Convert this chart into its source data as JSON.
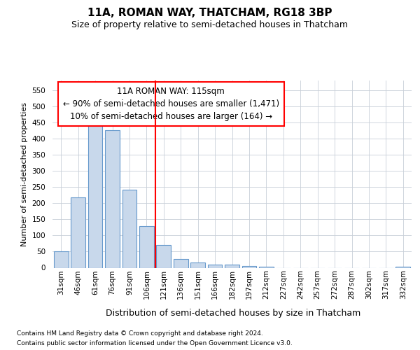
{
  "title_line1": "11A, ROMAN WAY, THATCHAM, RG18 3BP",
  "title_line2": "Size of property relative to semi-detached houses in Thatcham",
  "xlabel": "Distribution of semi-detached houses by size in Thatcham",
  "ylabel": "Number of semi-detached properties",
  "footer_line1": "Contains HM Land Registry data © Crown copyright and database right 2024.",
  "footer_line2": "Contains public sector information licensed under the Open Government Licence v3.0.",
  "annotation_line1": "11A ROMAN WAY: 115sqm",
  "annotation_line2": "← 90% of semi-detached houses are smaller (1,471)",
  "annotation_line3": "10% of semi-detached houses are larger (164) →",
  "categories": [
    "31sqm",
    "46sqm",
    "61sqm",
    "76sqm",
    "91sqm",
    "106sqm",
    "121sqm",
    "136sqm",
    "151sqm",
    "166sqm",
    "182sqm",
    "197sqm",
    "212sqm",
    "227sqm",
    "242sqm",
    "257sqm",
    "272sqm",
    "287sqm",
    "302sqm",
    "317sqm",
    "332sqm"
  ],
  "values": [
    52,
    218,
    457,
    425,
    241,
    128,
    70,
    28,
    16,
    10,
    10,
    5,
    4,
    0,
    0,
    0,
    0,
    0,
    0,
    0,
    4
  ],
  "bar_color": "#c8d8eb",
  "bar_edge_color": "#6699cc",
  "red_line_x": 5.5,
  "ylim_max": 580,
  "yticks": [
    0,
    50,
    100,
    150,
    200,
    250,
    300,
    350,
    400,
    450,
    500,
    550
  ],
  "grid_color": "#c8cfd8",
  "title_fontsize": 11,
  "subtitle_fontsize": 9,
  "ylabel_fontsize": 8,
  "xlabel_fontsize": 9,
  "tick_fontsize": 7.5,
  "footer_fontsize": 6.5,
  "annotation_fontsize": 8.5
}
